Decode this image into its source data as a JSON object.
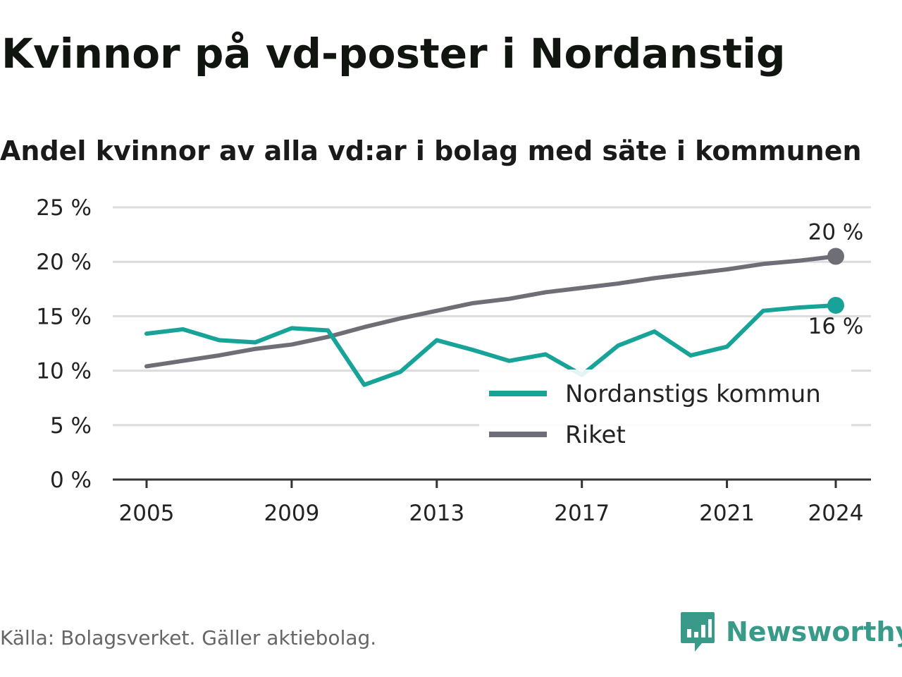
{
  "header": {
    "title": "Kvinnor på vd-poster i Nordanstig",
    "subtitle": "Andel kvinnor av alla vd:ar i bolag med säte i kommunen"
  },
  "footer": {
    "source": "Källa: Bolagsverket. Gäller aktiebolag.",
    "brand": "Newsworthy"
  },
  "colors": {
    "kommun": "#17a398",
    "riket": "#6e6e76",
    "brand": "#3a9a8a",
    "grid": "#dcdcdc"
  },
  "chart_data": {
    "type": "line",
    "x": [
      2005,
      2006,
      2007,
      2008,
      2009,
      2010,
      2011,
      2012,
      2013,
      2014,
      2015,
      2016,
      2017,
      2018,
      2019,
      2020,
      2021,
      2022,
      2023,
      2024
    ],
    "series": [
      {
        "name": "Nordanstigs kommun",
        "values": [
          13.4,
          13.8,
          12.8,
          12.6,
          13.9,
          13.7,
          8.7,
          9.9,
          12.8,
          11.9,
          10.9,
          11.5,
          9.6,
          12.3,
          13.6,
          11.4,
          12.2,
          15.5,
          15.8,
          16.0
        ],
        "end_label": "16 %"
      },
      {
        "name": "Riket",
        "values": [
          10.4,
          10.9,
          11.4,
          12.0,
          12.4,
          13.1,
          14.0,
          14.8,
          15.5,
          16.2,
          16.6,
          17.2,
          17.6,
          18.0,
          18.5,
          18.9,
          19.3,
          19.8,
          20.1,
          20.5
        ],
        "end_label": "20 %"
      }
    ],
    "xticks": [
      {
        "value": 2005,
        "label": "2005"
      },
      {
        "value": 2009,
        "label": "2009"
      },
      {
        "value": 2013,
        "label": "2013"
      },
      {
        "value": 2017,
        "label": "2017"
      },
      {
        "value": 2021,
        "label": "2021"
      },
      {
        "value": 2024,
        "label": "2024"
      }
    ],
    "yticks": [
      {
        "value": 0,
        "label": "0 %"
      },
      {
        "value": 5,
        "label": "5 %"
      },
      {
        "value": 10,
        "label": "10 %"
      },
      {
        "value": 15,
        "label": "15 %"
      },
      {
        "value": 20,
        "label": "20 %"
      },
      {
        "value": 25,
        "label": "25 %"
      }
    ],
    "xlim": [
      2005,
      2024
    ],
    "ylim": [
      0,
      25
    ],
    "grid": true,
    "legend": "bottom-right"
  }
}
